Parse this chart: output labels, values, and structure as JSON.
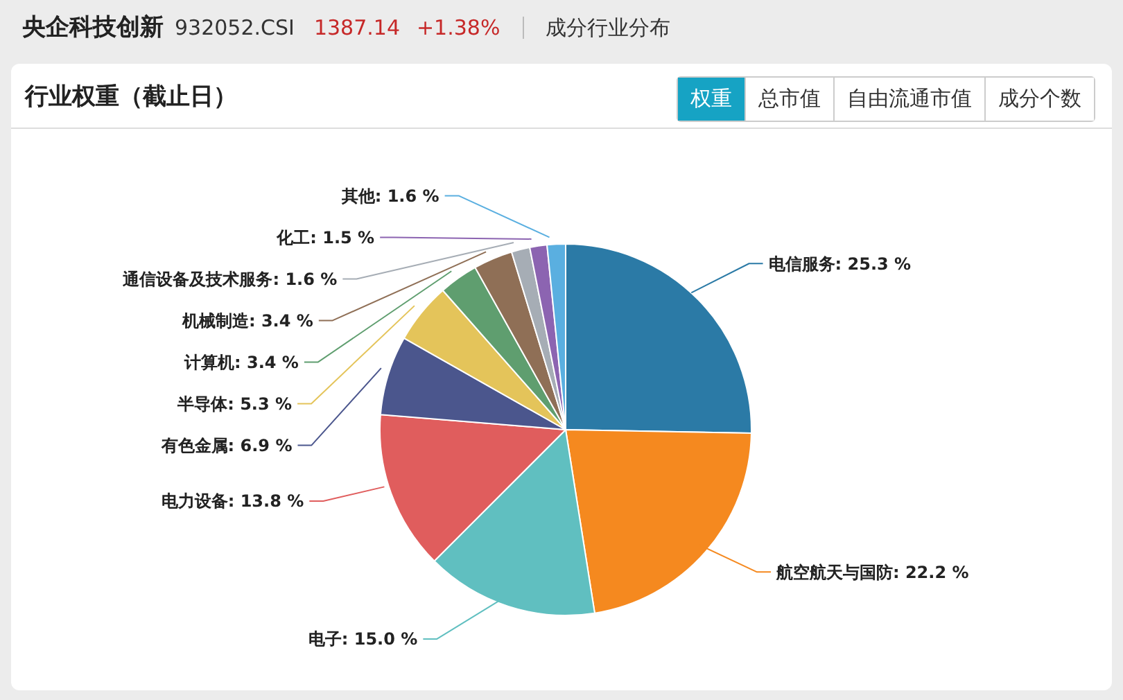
{
  "chart_data": {
    "type": "pie",
    "title": "央企科技创新",
    "subtitle": "行业权重（截止日）",
    "annotations": [
      "932052.CSI",
      "1387.14",
      "+1.38%",
      "成分行业分布",
      "权重",
      "总市值",
      "自由流通市值",
      "成分个数"
    ],
    "categories": [
      "电信服务",
      "航空航天与国防",
      "电子",
      "电力设备",
      "有色金属",
      "半导体",
      "计算机",
      "机械制造",
      "通信设备及技术服务",
      "化工",
      "其他"
    ],
    "values": [
      25.3,
      22.2,
      15.0,
      13.8,
      6.9,
      5.3,
      3.4,
      3.4,
      1.6,
      1.5,
      1.6
    ],
    "value_labels": [
      "25.3 %",
      "22.2 %",
      "15.0 %",
      "13.8 %",
      "6.9 %",
      "5.3 %",
      "3.4 %",
      "3.4 %",
      "1.6 %",
      "1.5 %",
      "1.6 %"
    ],
    "colors": [
      "#2b7aa6",
      "#f5891f",
      "#60bfc0",
      "#e05d5d",
      "#4b568d",
      "#e4c45a",
      "#5f9e6f",
      "#8f6f56",
      "#a6adb5",
      "#8c64b1",
      "#5aafe0"
    ]
  }
}
